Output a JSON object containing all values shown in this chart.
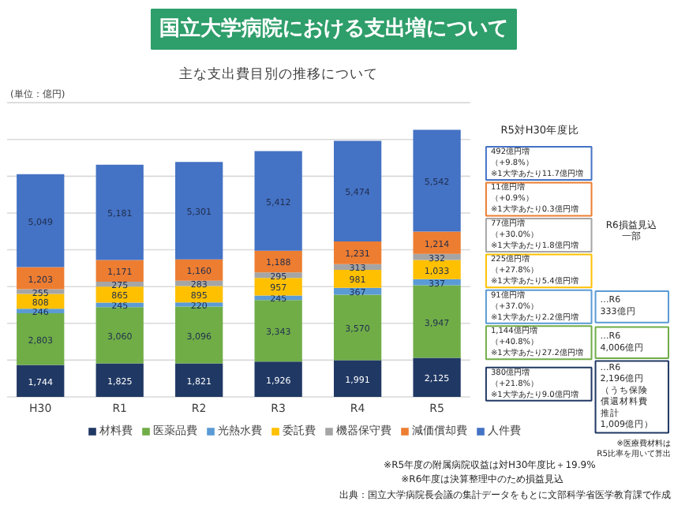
{
  "chart_data": {
    "type": "bar",
    "stacked": true,
    "title": "国立大学病院における支出増について",
    "subtitle": "主な支出費目別の推移について",
    "ylabel": "(単位：億円)",
    "categories": [
      "H30",
      "R1",
      "R2",
      "R3",
      "R4",
      "R5"
    ],
    "series": [
      {
        "name": "材料費",
        "color": "#203864",
        "values": [
          1744,
          1825,
          1821,
          1926,
          1991,
          2125
        ],
        "value_labels": [
          "1,744",
          "1,825",
          "1,821",
          "1,926",
          "1,991",
          "2,125"
        ]
      },
      {
        "name": "医薬品費",
        "color": "#70ad47",
        "values": [
          2803,
          3060,
          3096,
          3343,
          3570,
          3947
        ],
        "value_labels": [
          "2,803",
          "3,060",
          "3,096",
          "3,343",
          "3,570",
          "3,947"
        ]
      },
      {
        "name": "光熱水費",
        "color": "#5b9bd5",
        "values": [
          246,
          245,
          220,
          245,
          367,
          337
        ],
        "value_labels": [
          "246",
          "245",
          "220",
          "245",
          "367",
          "337"
        ]
      },
      {
        "name": "委託費",
        "color": "#ffc000",
        "values": [
          808,
          865,
          895,
          957,
          981,
          1033
        ],
        "value_labels": [
          "808",
          "865",
          "895",
          "957",
          "981",
          "1,033"
        ]
      },
      {
        "name": "機器保守費",
        "color": "#a5a5a5",
        "values": [
          255,
          275,
          283,
          295,
          313,
          332
        ],
        "value_labels": [
          "255",
          "275",
          "283",
          "295",
          "313",
          "332"
        ]
      },
      {
        "name": "減価償却費",
        "color": "#ed7d31",
        "values": [
          1203,
          1171,
          1160,
          1188,
          1231,
          1214
        ],
        "value_labels": [
          "1,203",
          "1,171",
          "1,160",
          "1,188",
          "1,231",
          "1,214"
        ]
      },
      {
        "name": "人件費",
        "color": "#4472c4",
        "values": [
          5049,
          5181,
          5301,
          5412,
          5474,
          5542
        ],
        "value_labels": [
          "5,049",
          "5,181",
          "5,301",
          "5,412",
          "5,474",
          "5,542"
        ]
      }
    ],
    "grid": "y",
    "legend": "bottom",
    "tick_labels": "x",
    "yticks": [
      {
        "value": 0,
        "label": null
      },
      {
        "value": 2000,
        "label": null
      },
      {
        "value": 4000,
        "label": null
      },
      {
        "value": 6000,
        "label": null
      },
      {
        "value": 8000,
        "label": null
      },
      {
        "value": 10000,
        "label": null
      },
      {
        "value": 12000,
        "label": null
      },
      {
        "value": 14000,
        "label": null
      },
      {
        "value": 16000,
        "label": null
      }
    ],
    "annotations": [
      "R5対H30年度比",
      "492億円増",
      "（+9.8%）",
      "※1大学あたり11.7億円増",
      "11億円増",
      "（+0.9%）",
      "※1大学あたり0.3億円増",
      "77億円増",
      "（+30.0%）",
      "※1大学あたり1.8億円増",
      "225億円増",
      "（+27.8%）",
      "※1大学あたり5.4億円増",
      "91億円増",
      "（+37.0%）",
      "※1大学あたり2.2億円増",
      "1,144億円増",
      "（+40.8%）",
      "※1大学あたり27.2億円増",
      "380億円増",
      "（+21.8%）",
      "※1大学あたり9.0億円増",
      "R6損益見込",
      "一部",
      "…R6",
      "333億円",
      "…R6",
      "4,006億円",
      "…R6",
      "2,196億円",
      "（うち保険",
      "償還材料費",
      "推計",
      "1,009億円）",
      "※医療費材料は",
      "R5比率を用いて算出",
      "※R5年度の附属病院収益は対H30年度比＋19.9%",
      "※R6年度は決算整理中のため損益見込",
      "出典：国立大学病院長会議の集計データをもとに文部科学省医学教育課で作成"
    ]
  }
}
